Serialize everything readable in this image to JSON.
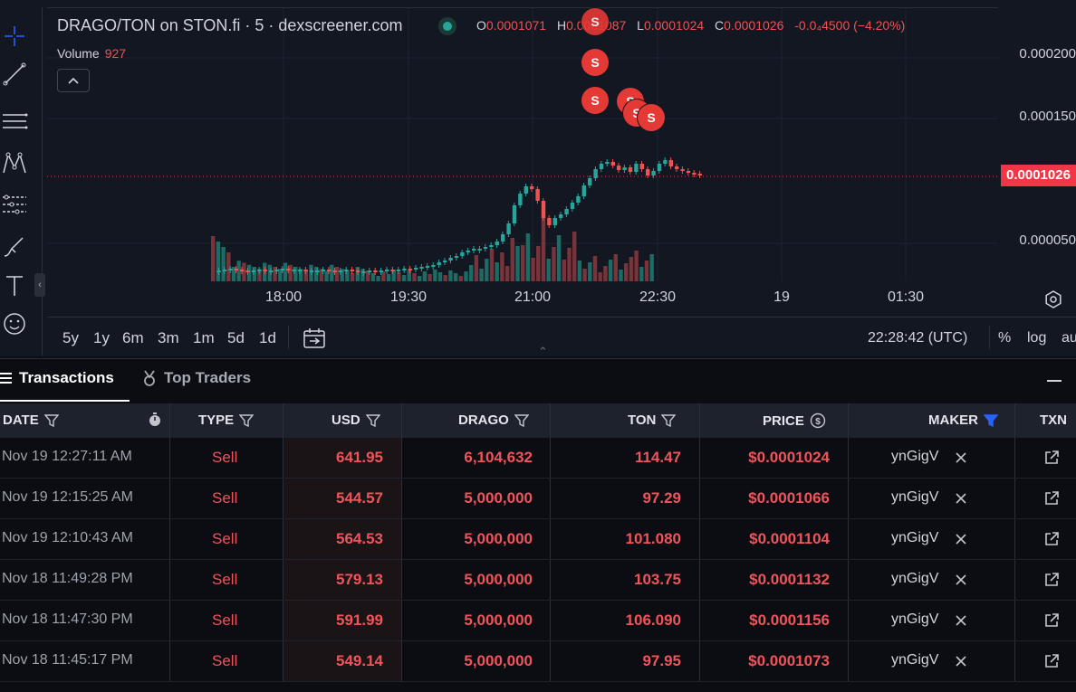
{
  "chart_header": {
    "title": "DRAGO/TON on STON.fi · 5 · dexscreener.com",
    "ohlc": [
      {
        "k": "O",
        "v": "0.0001071"
      },
      {
        "k": "H",
        "v": "0.0001087"
      },
      {
        "k": "L",
        "v": "0.0001024"
      },
      {
        "k": "C",
        "v": "0.0001026"
      }
    ],
    "change": "-0.0₄4500 (−4.20%)",
    "volume_label": "Volume",
    "volume_value": "927",
    "hide_indicators": "^"
  },
  "y_axis": {
    "labels": [
      "0.000200",
      "0.000150",
      "0.000050"
    ],
    "current_price": "0.0001026"
  },
  "x_axis": {
    "labels": [
      "18:00",
      "19:30",
      "21:00",
      "22:30",
      "19",
      "01:30"
    ]
  },
  "ranges": [
    "5y",
    "1y",
    "6m",
    "3m",
    "1m",
    "5d",
    "1d"
  ],
  "bottom_bar": {
    "time": "22:28:42 (UTC)",
    "percent": "%",
    "log": "log",
    "auto": "auto"
  },
  "sell_marker": "S",
  "tabs": {
    "transactions": "Transactions",
    "top_traders": "Top Traders"
  },
  "table": {
    "headers": [
      "DATE",
      "TYPE",
      "USD",
      "DRAGO",
      "TON",
      "PRICE",
      "MAKER",
      "TXN"
    ],
    "rows": [
      {
        "date": "Nov 19 12:27:11 AM",
        "type": "Sell",
        "usd": "641.95",
        "drago": "6,104,632",
        "ton": "114.47",
        "price": "$0.0001024",
        "maker": "ynGigV"
      },
      {
        "date": "Nov 19 12:15:25 AM",
        "type": "Sell",
        "usd": "544.57",
        "drago": "5,000,000",
        "ton": "97.29",
        "price": "$0.0001066",
        "maker": "ynGigV"
      },
      {
        "date": "Nov 19 12:10:43 AM",
        "type": "Sell",
        "usd": "564.53",
        "drago": "5,000,000",
        "ton": "101.080",
        "price": "$0.0001104",
        "maker": "ynGigV"
      },
      {
        "date": "Nov 18 11:49:28 PM",
        "type": "Sell",
        "usd": "579.13",
        "drago": "5,000,000",
        "ton": "103.75",
        "price": "$0.0001132",
        "maker": "ynGigV"
      },
      {
        "date": "Nov 18 11:47:30 PM",
        "type": "Sell",
        "usd": "591.99",
        "drago": "5,000,000",
        "ton": "106.090",
        "price": "$0.0001156",
        "maker": "ynGigV"
      },
      {
        "date": "Nov 18 11:45:17 PM",
        "type": "Sell",
        "usd": "549.14",
        "drago": "5,000,000",
        "ton": "97.95",
        "price": "$0.0001073",
        "maker": "ynGigV"
      }
    ]
  },
  "colors": {
    "up": "#26a69a",
    "down": "#ef5350",
    "accent_red": "#f23645",
    "maker_filter": "#2962ff"
  },
  "icons": [
    "crosshair-icon",
    "trendline-icon",
    "fib-icon",
    "pattern-icon",
    "measure-icon",
    "brush-icon",
    "text-icon",
    "emoji-icon",
    "compare-icon",
    "settings-icon",
    "medal-icon",
    "timer-icon",
    "dollar-icon",
    "filter-icon",
    "close-icon",
    "external-link-icon"
  ]
}
